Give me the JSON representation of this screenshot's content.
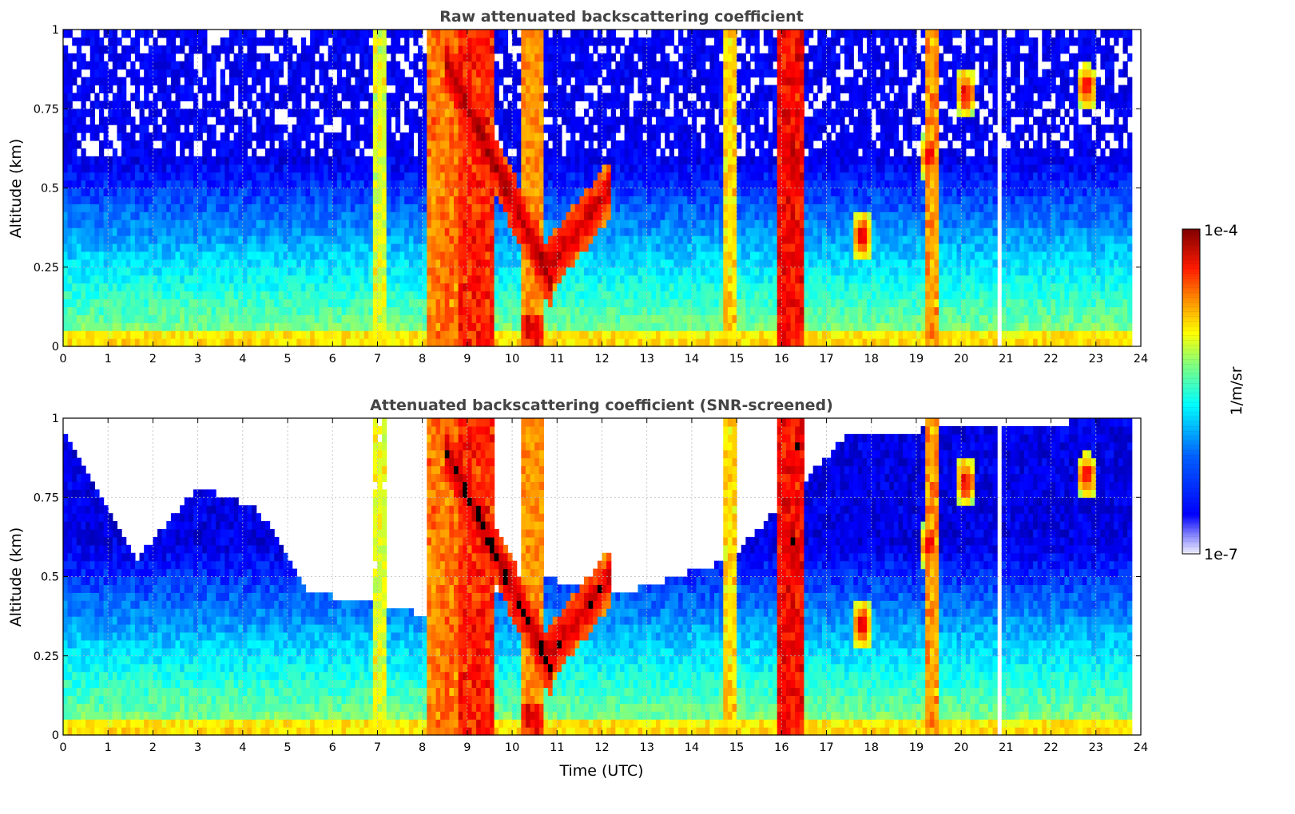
{
  "chart_data": [
    {
      "type": "heatmap",
      "title": "Raw attenuated backscattering coefficient",
      "xlabel": "",
      "ylabel": "Altitude (km)",
      "xlim": [
        0,
        24
      ],
      "ylim": [
        0,
        1
      ],
      "xticks": [
        "0",
        "1",
        "2",
        "3",
        "4",
        "5",
        "6",
        "7",
        "8",
        "9",
        "10",
        "11",
        "12",
        "13",
        "14",
        "15",
        "16",
        "17",
        "18",
        "19",
        "20",
        "21",
        "22",
        "23",
        "24"
      ],
      "yticks": [
        "0",
        "0.25",
        "0.5",
        "0.75",
        "1"
      ],
      "grid": true,
      "colorscale": "jet, log",
      "mask": "none",
      "data_end_time": 23.8,
      "gaps": [
        {
          "from": 20.8,
          "to": 20.9
        }
      ],
      "features": [
        {
          "kind": "background",
          "from": 0,
          "to": 24,
          "near_surface": 1.6,
          "aloft": 0.3,
          "note": "log10 units above 1e-7"
        },
        {
          "kind": "column",
          "from": 6.9,
          "to": 7.2,
          "value": 1.9
        },
        {
          "kind": "column",
          "from": 8.1,
          "to": 8.8,
          "value": 2.4
        },
        {
          "kind": "column",
          "from": 8.8,
          "to": 9.6,
          "value": 2.65
        },
        {
          "kind": "column",
          "from": 10.2,
          "to": 10.7,
          "value": 2.7,
          "top": 0.1
        },
        {
          "kind": "column",
          "from": 14.75,
          "to": 14.95,
          "value": 2.1
        },
        {
          "kind": "column",
          "from": 15.9,
          "to": 16.45,
          "value": 2.75
        },
        {
          "kind": "column",
          "from": 19.2,
          "to": 19.5,
          "value": 2.3
        },
        {
          "kind": "layer",
          "from": 8.5,
          "to": 10.9,
          "alt_start": 0.9,
          "alt_end": 0.2,
          "value": 2.9
        },
        {
          "kind": "layer",
          "from": 10.8,
          "to": 12.2,
          "alt_start": 0.25,
          "alt_end": 0.5,
          "value": 2.8
        },
        {
          "kind": "patch",
          "t": 19.3,
          "alt": 0.6,
          "value": 2.9
        },
        {
          "kind": "patch",
          "t": 20.1,
          "alt": 0.8,
          "value": 2.9
        },
        {
          "kind": "patch",
          "t": 22.8,
          "alt": 0.82,
          "value": 2.85
        },
        {
          "kind": "patch",
          "t": 17.8,
          "alt": 0.35,
          "value": 2.9
        }
      ]
    },
    {
      "type": "heatmap",
      "title": "Attenuated backscattering coefficient (SNR-screened)",
      "xlabel": "Time (UTC)",
      "ylabel": "Altitude (km)",
      "xlim": [
        0,
        24
      ],
      "ylim": [
        0,
        1
      ],
      "xticks": [
        "0",
        "1",
        "2",
        "3",
        "4",
        "5",
        "6",
        "7",
        "8",
        "9",
        "10",
        "11",
        "12",
        "13",
        "14",
        "15",
        "16",
        "17",
        "18",
        "19",
        "20",
        "21",
        "22",
        "23",
        "24"
      ],
      "yticks": [
        "0",
        "0.25",
        "0.5",
        "0.75",
        "1"
      ],
      "grid": true,
      "colorscale": "jet, log",
      "mask": "white above SNR limit, black where saturated",
      "snr_limit_altitude_km": [
        {
          "t": 0,
          "alt": 0.95
        },
        {
          "t": 1.6,
          "alt": 0.55
        },
        {
          "t": 3,
          "alt": 0.78
        },
        {
          "t": 4.3,
          "alt": 0.72
        },
        {
          "t": 5.5,
          "alt": 0.45
        },
        {
          "t": 6.8,
          "alt": 0.42
        },
        {
          "t": 8,
          "alt": 0.38
        },
        {
          "t": 10.5,
          "alt": 0.5
        },
        {
          "t": 12.5,
          "alt": 0.45
        },
        {
          "t": 14.8,
          "alt": 0.55
        },
        {
          "t": 16.5,
          "alt": 0.8
        },
        {
          "t": 17.5,
          "alt": 0.95
        },
        {
          "t": 24,
          "alt": 1.0
        }
      ]
    }
  ],
  "colorbar": {
    "label": "1/m/sr",
    "min_label": "1e-7",
    "max_label": "1e-4",
    "scale": "log"
  }
}
